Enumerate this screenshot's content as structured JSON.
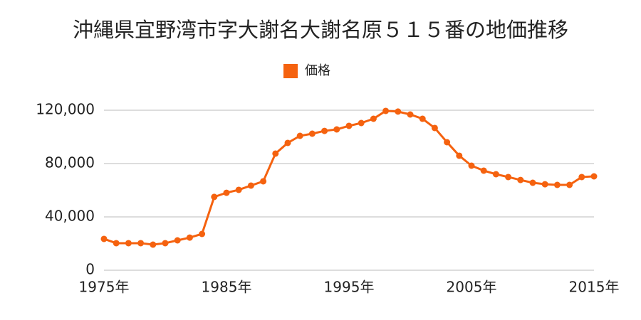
{
  "chart_data": {
    "type": "line",
    "title": "沖縄県宜野湾市字大謝名大謝名原５１５番の地価推移",
    "x": [
      1975,
      1976,
      1977,
      1978,
      1979,
      1980,
      1981,
      1982,
      1983,
      1984,
      1985,
      1986,
      1987,
      1988,
      1989,
      1990,
      1991,
      1992,
      1993,
      1994,
      1995,
      1996,
      1997,
      1998,
      1999,
      2000,
      2001,
      2002,
      2003,
      2004,
      2005,
      2006,
      2007,
      2008,
      2009,
      2010,
      2011,
      2012,
      2013,
      2014,
      2015
    ],
    "series": [
      {
        "name": "価格",
        "color": "#f5620f",
        "values": [
          23500,
          20300,
          20300,
          20300,
          19200,
          20300,
          22400,
          24500,
          27200,
          55000,
          58100,
          60300,
          63500,
          66700,
          87500,
          95500,
          100800,
          102400,
          104500,
          105600,
          108300,
          110400,
          113600,
          119500,
          119000,
          116800,
          113600,
          106700,
          96000,
          85900,
          78400,
          74700,
          72000,
          69900,
          67700,
          65600,
          64500,
          64000,
          64000,
          69900,
          70400
        ]
      }
    ],
    "xlim": [
      1975,
      2015
    ],
    "xticks": [
      {
        "value": 1975,
        "label": "1975年"
      },
      {
        "value": 1985,
        "label": "1985年"
      },
      {
        "value": 1995,
        "label": "1995年"
      },
      {
        "value": 2005,
        "label": "2005年"
      },
      {
        "value": 2015,
        "label": "2015年"
      }
    ],
    "ylim": [
      0,
      120000
    ],
    "yticks": [
      0,
      {
        "value": 40000,
        "label": "40,000"
      },
      {
        "value": 80000,
        "label": "80,000"
      },
      {
        "value": 120000,
        "label": "120,000"
      }
    ],
    "grid": true,
    "legend": "top"
  }
}
